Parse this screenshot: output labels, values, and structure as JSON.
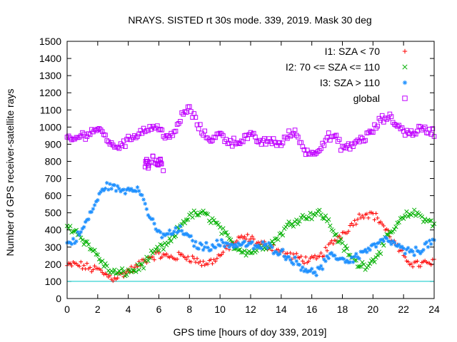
{
  "chart_data": {
    "type": "scatter",
    "title": "NRAYS. SISTED rt 30s mode. 339, 2019. Mask 30 deg",
    "xlabel": "GPS time [hours of doy 339, 2019]",
    "ylabel": "Number of GPS receiver-satellite rays",
    "xlim": [
      0,
      24
    ],
    "ylim": [
      0,
      1500
    ],
    "xticks": [
      "0",
      "2",
      "4",
      "6",
      "8",
      "10",
      "12",
      "14",
      "16",
      "18",
      "20",
      "22",
      "24"
    ],
    "yticks": [
      "0",
      "100",
      "200",
      "300",
      "400",
      "500",
      "600",
      "700",
      "800",
      "900",
      "1000",
      "1100",
      "1200",
      "1300",
      "1400",
      "1500"
    ],
    "reference_line": {
      "y": 100,
      "color": "#00c8c8"
    },
    "legend_position": "top-right",
    "series": [
      {
        "name": "I1: SZA < 70",
        "marker": "+",
        "color": "#ff0000",
        "points": [
          [
            0,
            190
          ],
          [
            0.5,
            200
          ],
          [
            1,
            190
          ],
          [
            1.5,
            175
          ],
          [
            2,
            170
          ],
          [
            2.5,
            140
          ],
          [
            3,
            120
          ],
          [
            3.5,
            135
          ],
          [
            4,
            160
          ],
          [
            4.5,
            180
          ],
          [
            5,
            220
          ],
          [
            5.5,
            245
          ],
          [
            6,
            255
          ],
          [
            6.5,
            245
          ],
          [
            7,
            240
          ],
          [
            7.5,
            250
          ],
          [
            8,
            240
          ],
          [
            8.5,
            220
          ],
          [
            9,
            200
          ],
          [
            9.5,
            220
          ],
          [
            10,
            250
          ],
          [
            10.5,
            300
          ],
          [
            11,
            330
          ],
          [
            11.5,
            355
          ],
          [
            12,
            350
          ],
          [
            12.5,
            320
          ],
          [
            13,
            310
          ],
          [
            13.5,
            300
          ],
          [
            14,
            270
          ],
          [
            14.5,
            250
          ],
          [
            15,
            240
          ],
          [
            15.5,
            230
          ],
          [
            16,
            220
          ],
          [
            16.5,
            240
          ],
          [
            17,
            290
          ],
          [
            17.5,
            340
          ],
          [
            18,
            380
          ],
          [
            18.5,
            420
          ],
          [
            19,
            470
          ],
          [
            19.5,
            500
          ],
          [
            20,
            490
          ],
          [
            20.5,
            450
          ],
          [
            21,
            380
          ],
          [
            21.5,
            310
          ],
          [
            22,
            240
          ],
          [
            22.5,
            210
          ],
          [
            23,
            200
          ],
          [
            23.5,
            205
          ],
          [
            24,
            210
          ]
        ]
      },
      {
        "name": "I2: 70 <= SZA <= 110",
        "marker": "x",
        "color": "#00b000",
        "points": [
          [
            0,
            420
          ],
          [
            0.5,
            400
          ],
          [
            1,
            350
          ],
          [
            1.5,
            300
          ],
          [
            2,
            250
          ],
          [
            2.5,
            185
          ],
          [
            3,
            150
          ],
          [
            3.5,
            148
          ],
          [
            4,
            155
          ],
          [
            4.5,
            170
          ],
          [
            5,
            200
          ],
          [
            5.5,
            250
          ],
          [
            6,
            290
          ],
          [
            6.5,
            310
          ],
          [
            7,
            360
          ],
          [
            7.5,
            440
          ],
          [
            8,
            480
          ],
          [
            8.5,
            495
          ],
          [
            9,
            490
          ],
          [
            9.5,
            460
          ],
          [
            10,
            410
          ],
          [
            10.5,
            350
          ],
          [
            11,
            300
          ],
          [
            11.5,
            280
          ],
          [
            12,
            270
          ],
          [
            12.5,
            290
          ],
          [
            13,
            310
          ],
          [
            13.5,
            330
          ],
          [
            14,
            380
          ],
          [
            14.5,
            430
          ],
          [
            15,
            460
          ],
          [
            15.5,
            475
          ],
          [
            16,
            490
          ],
          [
            16.5,
            500
          ],
          [
            17,
            460
          ],
          [
            17.5,
            380
          ],
          [
            18,
            310
          ],
          [
            18.5,
            250
          ],
          [
            19,
            200
          ],
          [
            19.5,
            195
          ],
          [
            20,
            220
          ],
          [
            20.5,
            290
          ],
          [
            21,
            360
          ],
          [
            21.5,
            420
          ],
          [
            22,
            470
          ],
          [
            22.5,
            500
          ],
          [
            23,
            490
          ],
          [
            23.5,
            460
          ],
          [
            24,
            430
          ]
        ]
      },
      {
        "name": "I3: SZA > 110",
        "marker": "*",
        "color": "#1e90ff",
        "points": [
          [
            0,
            320
          ],
          [
            0.5,
            340
          ],
          [
            1,
            400
          ],
          [
            1.5,
            490
          ],
          [
            2,
            580
          ],
          [
            2.5,
            660
          ],
          [
            3,
            650
          ],
          [
            3.5,
            630
          ],
          [
            4,
            640
          ],
          [
            4.5,
            650
          ],
          [
            5,
            580
          ],
          [
            5.5,
            450
          ],
          [
            6,
            380
          ],
          [
            6.5,
            370
          ],
          [
            7,
            390
          ],
          [
            7.5,
            400
          ],
          [
            8,
            350
          ],
          [
            8.5,
            310
          ],
          [
            9,
            300
          ],
          [
            9.5,
            310
          ],
          [
            10,
            320
          ],
          [
            10.5,
            320
          ],
          [
            11,
            310
          ],
          [
            11.5,
            320
          ],
          [
            12,
            310
          ],
          [
            12.5,
            300
          ],
          [
            13,
            310
          ],
          [
            13.5,
            290
          ],
          [
            14,
            270
          ],
          [
            14.5,
            240
          ],
          [
            15,
            210
          ],
          [
            15.5,
            180
          ],
          [
            16,
            150
          ],
          [
            16.5,
            165
          ],
          [
            17,
            230
          ],
          [
            17.5,
            250
          ],
          [
            18,
            230
          ],
          [
            18.5,
            220
          ],
          [
            19,
            250
          ],
          [
            19.5,
            280
          ],
          [
            20,
            300
          ],
          [
            20.5,
            330
          ],
          [
            21,
            340
          ],
          [
            21.5,
            310
          ],
          [
            22,
            280
          ],
          [
            22.5,
            270
          ],
          [
            23,
            280
          ],
          [
            23.5,
            310
          ],
          [
            24,
            340
          ]
        ]
      },
      {
        "name": "global",
        "marker": "square",
        "color": "#c000ff",
        "points": [
          [
            0,
            920
          ],
          [
            0.5,
            930
          ],
          [
            1,
            950
          ],
          [
            1.5,
            970
          ],
          [
            2,
            990
          ],
          [
            2.5,
            950
          ],
          [
            3,
            880
          ],
          [
            3.5,
            900
          ],
          [
            4,
            920
          ],
          [
            4.5,
            960
          ],
          [
            5,
            980
          ],
          [
            5.5,
            1000
          ],
          [
            6,
            990
          ],
          [
            6.5,
            950
          ],
          [
            7,
            950
          ],
          [
            7.5,
            1070
          ],
          [
            8,
            1110
          ],
          [
            8.5,
            1020
          ],
          [
            9,
            950
          ],
          [
            9.5,
            930
          ],
          [
            10,
            960
          ],
          [
            10.5,
            920
          ],
          [
            11,
            910
          ],
          [
            11.5,
            930
          ],
          [
            12,
            950
          ],
          [
            12.5,
            920
          ],
          [
            13,
            910
          ],
          [
            13.5,
            920
          ],
          [
            14,
            900
          ],
          [
            14.5,
            960
          ],
          [
            15,
            960
          ],
          [
            15.5,
            870
          ],
          [
            16,
            840
          ],
          [
            16.5,
            880
          ],
          [
            17,
            940
          ],
          [
            17.5,
            940
          ],
          [
            18,
            880
          ],
          [
            18.5,
            880
          ],
          [
            19,
            920
          ],
          [
            19.5,
            940
          ],
          [
            20,
            980
          ],
          [
            20.5,
            1040
          ],
          [
            21,
            1060
          ],
          [
            21.5,
            1020
          ],
          [
            22,
            980
          ],
          [
            22.5,
            960
          ],
          [
            23,
            990
          ],
          [
            23.5,
            980
          ],
          [
            24,
            970
          ]
        ]
      }
    ],
    "outlier_groups": [
      {
        "series": "global",
        "x_start": 5.1,
        "x_end": 6.3,
        "points": [
          [
            5.2,
            790
          ],
          [
            5.4,
            760
          ],
          [
            5.6,
            820
          ],
          [
            5.8,
            780
          ],
          [
            6.0,
            800
          ],
          [
            6.2,
            770
          ]
        ]
      }
    ]
  }
}
